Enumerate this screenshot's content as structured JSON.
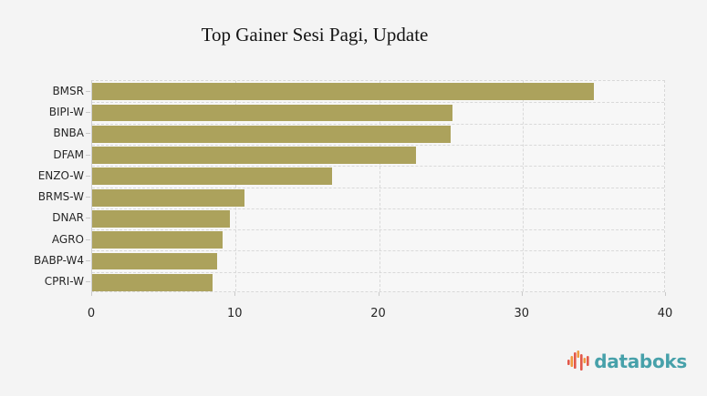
{
  "figure": {
    "background_color": "#f4f4f4",
    "plot_background_color": "#f7f7f7",
    "bar_color": "#aca25c",
    "grid_color": "#d9d9d9"
  },
  "chart_data": {
    "type": "bar",
    "orientation": "horizontal",
    "title": "Top Gainer Sesi Pagi, Update",
    "categories": [
      "BMSR",
      "BIPI-W",
      "BNBA",
      "DFAM",
      "ENZO-W",
      "BRMS-W",
      "DNAR",
      "AGRO",
      "BABP-W4",
      "CPRI-W"
    ],
    "values": [
      35,
      25.1,
      25,
      22.6,
      16.7,
      10.6,
      9.6,
      9.1,
      8.7,
      8.4
    ],
    "xlabel": "",
    "ylabel": "",
    "xlim": [
      0,
      40
    ],
    "x_ticks": [
      0,
      10,
      20,
      30,
      40
    ],
    "grid": true,
    "grid_style": "dashed",
    "legend": "none",
    "bar_color": "#aca25c"
  },
  "branding": {
    "logo_text": "databoks",
    "logo_text_color": "#47a1aa",
    "logo_icon": "bar-chart-icon",
    "logo_icon_colors": [
      "#e2584a",
      "#f09a3e"
    ]
  }
}
